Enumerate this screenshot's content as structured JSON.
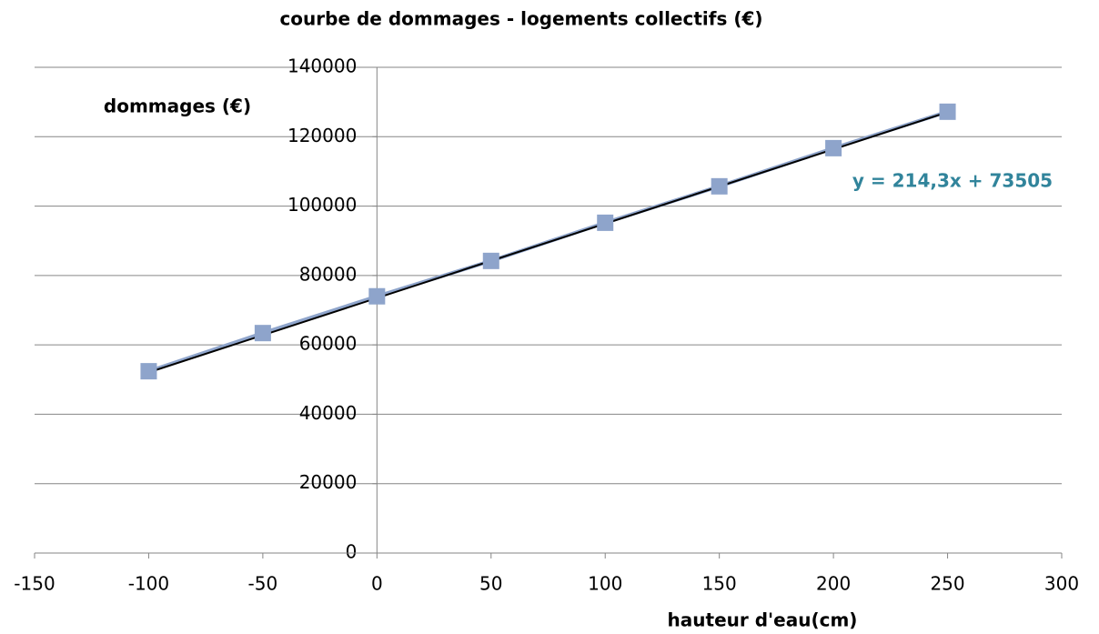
{
  "chart_data": {
    "type": "scatter",
    "title": "courbe de dommages - logements collectifs (€)",
    "y_label": "dommages (€)",
    "x_label": "hauteur d'eau(cm)",
    "x": [
      -100,
      -50,
      0,
      50,
      100,
      150,
      200,
      250
    ],
    "series": [
      {
        "color": "#8ea4cb",
        "values": [
          52400,
          63400,
          74000,
          84200,
          95200,
          105700,
          116700,
          127200
        ]
      }
    ],
    "trendline": {
      "label": "y = 214,3x + 73505",
      "slope": 214.3,
      "intercept": 73505,
      "color": "#000000",
      "label_color": "#31849b"
    },
    "xlim": [
      -150,
      300
    ],
    "xticks": [
      -150,
      -100,
      -50,
      0,
      50,
      100,
      150,
      200,
      250,
      300
    ],
    "ylim": [
      0,
      140000
    ],
    "yticks": [
      0,
      20000,
      40000,
      60000,
      80000,
      100000,
      120000,
      140000
    ],
    "grid": true
  }
}
